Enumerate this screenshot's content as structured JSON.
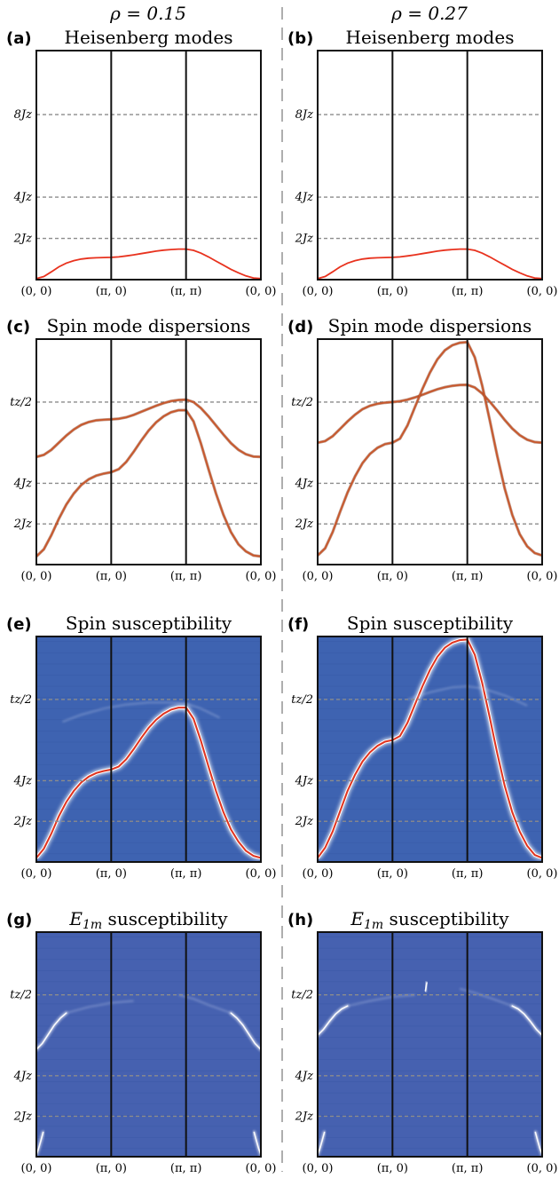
{
  "columns": [
    "ρ = 0.15",
    "ρ = 0.27"
  ],
  "colors": {
    "frame": "#111111",
    "grid": "#8c8c8c",
    "heisenberg_line": "#e8321e",
    "spin_mode_line": "#c9582c",
    "heatmap_bg": "#3e63b1",
    "heatmap_bg_e1m": "#4661b0",
    "ridge_core": "#e0321e",
    "ridge_halo": "#ffffff",
    "separator": "#9a9a9a"
  },
  "chart_data": [
    {
      "type": "line",
      "panel_label": "(a)",
      "column": "ρ = 0.15",
      "title": "Heisenberg modes",
      "x_ticks": [
        "(0, 0)",
        "(π, 0)",
        "(π, π)",
        "(0, 0)"
      ],
      "y_ticks": [
        {
          "label": "2Jz",
          "value": 2
        },
        {
          "label": "4Jz",
          "value": 4
        },
        {
          "label": "8Jz",
          "value": 8
        }
      ],
      "ylim": [
        0,
        11.1
      ],
      "series": [
        {
          "x": [
            0,
            0.1,
            0.2,
            0.3,
            0.4,
            0.5,
            0.6,
            0.7,
            0.8,
            0.9,
            1,
            1.1,
            1.2,
            1.3,
            1.4,
            1.5,
            1.6,
            1.7,
            1.8,
            1.9,
            2,
            2.1,
            2.2,
            2.3,
            2.4,
            2.5,
            2.6,
            2.7,
            2.8,
            2.9,
            3
          ],
          "y": [
            0.05,
            0.15,
            0.38,
            0.62,
            0.8,
            0.92,
            1.0,
            1.04,
            1.06,
            1.07,
            1.08,
            1.1,
            1.15,
            1.2,
            1.26,
            1.32,
            1.38,
            1.43,
            1.46,
            1.48,
            1.48,
            1.42,
            1.28,
            1.1,
            0.9,
            0.7,
            0.5,
            0.33,
            0.18,
            0.08,
            0.05
          ]
        }
      ]
    },
    {
      "type": "line",
      "panel_label": "(b)",
      "column": "ρ = 0.27",
      "title": "Heisenberg modes",
      "x_ticks": [
        "(0, 0)",
        "(π, 0)",
        "(π, π)",
        "(0, 0)"
      ],
      "y_ticks": [
        {
          "label": "2Jz",
          "value": 2
        },
        {
          "label": "4Jz",
          "value": 4
        },
        {
          "label": "8Jz",
          "value": 8
        }
      ],
      "ylim": [
        0,
        11.1
      ],
      "series": [
        {
          "x": [
            0,
            0.1,
            0.2,
            0.3,
            0.4,
            0.5,
            0.6,
            0.7,
            0.8,
            0.9,
            1,
            1.1,
            1.2,
            1.3,
            1.4,
            1.5,
            1.6,
            1.7,
            1.8,
            1.9,
            2,
            2.1,
            2.2,
            2.3,
            2.4,
            2.5,
            2.6,
            2.7,
            2.8,
            2.9,
            3
          ],
          "y": [
            0.05,
            0.15,
            0.38,
            0.62,
            0.8,
            0.92,
            1.0,
            1.04,
            1.06,
            1.07,
            1.08,
            1.1,
            1.15,
            1.2,
            1.26,
            1.32,
            1.38,
            1.43,
            1.46,
            1.48,
            1.48,
            1.42,
            1.28,
            1.1,
            0.9,
            0.7,
            0.5,
            0.33,
            0.18,
            0.08,
            0.05
          ]
        }
      ]
    },
    {
      "type": "line",
      "panel_label": "(c)",
      "column": "ρ = 0.15",
      "title": "Spin mode dispersions",
      "x_ticks": [
        "(0, 0)",
        "(π, 0)",
        "(π, π)",
        "(0, 0)"
      ],
      "y_ticks": [
        {
          "label": "2Jz",
          "value": 2
        },
        {
          "label": "4Jz",
          "value": 4
        },
        {
          "label": "tz/2",
          "value": 8
        }
      ],
      "ylim": [
        0,
        11.1
      ],
      "series": [
        {
          "x": [
            0,
            0.1,
            0.2,
            0.3,
            0.4,
            0.5,
            0.6,
            0.7,
            0.8,
            0.9,
            1,
            1.1,
            1.2,
            1.3,
            1.4,
            1.5,
            1.6,
            1.7,
            1.8,
            1.9,
            2,
            2.1,
            2.2,
            2.3,
            2.4,
            2.5,
            2.6,
            2.7,
            2.8,
            2.9,
            3
          ],
          "y": [
            5.3,
            5.4,
            5.65,
            6.0,
            6.35,
            6.65,
            6.88,
            7.02,
            7.1,
            7.13,
            7.15,
            7.18,
            7.25,
            7.37,
            7.52,
            7.67,
            7.82,
            7.95,
            8.05,
            8.1,
            8.12,
            8.0,
            7.7,
            7.3,
            6.85,
            6.4,
            5.98,
            5.65,
            5.43,
            5.32,
            5.3
          ]
        },
        {
          "x": [
            0,
            0.1,
            0.2,
            0.3,
            0.4,
            0.5,
            0.6,
            0.7,
            0.8,
            0.9,
            1,
            1.1,
            1.2,
            1.3,
            1.4,
            1.5,
            1.6,
            1.7,
            1.8,
            1.9,
            2,
            2.1,
            2.2,
            2.3,
            2.4,
            2.5,
            2.6,
            2.7,
            2.8,
            2.9,
            3
          ],
          "y": [
            0.4,
            0.75,
            1.45,
            2.25,
            2.95,
            3.5,
            3.92,
            4.2,
            4.38,
            4.48,
            4.55,
            4.7,
            5.05,
            5.55,
            6.1,
            6.6,
            7.0,
            7.3,
            7.5,
            7.6,
            7.6,
            7.05,
            5.95,
            4.7,
            3.5,
            2.45,
            1.6,
            1.0,
            0.65,
            0.45,
            0.4
          ]
        }
      ]
    },
    {
      "type": "line",
      "panel_label": "(d)",
      "column": "ρ = 0.27",
      "title": "Spin mode dispersions",
      "x_ticks": [
        "(0, 0)",
        "(π, 0)",
        "(π, π)",
        "(0, 0)"
      ],
      "y_ticks": [
        {
          "label": "2Jz",
          "value": 2
        },
        {
          "label": "4Jz",
          "value": 4
        },
        {
          "label": "tz/2",
          "value": 8
        }
      ],
      "ylim": [
        0,
        11.1
      ],
      "series": [
        {
          "x": [
            0,
            0.1,
            0.2,
            0.3,
            0.4,
            0.5,
            0.6,
            0.7,
            0.8,
            0.9,
            1,
            1.1,
            1.2,
            1.3,
            1.4,
            1.5,
            1.6,
            1.7,
            1.8,
            1.9,
            2,
            2.1,
            2.2,
            2.3,
            2.4,
            2.5,
            2.6,
            2.7,
            2.8,
            2.9,
            3
          ],
          "y": [
            6.0,
            6.08,
            6.32,
            6.68,
            7.05,
            7.38,
            7.65,
            7.82,
            7.92,
            7.97,
            8.0,
            8.04,
            8.12,
            8.23,
            8.36,
            8.5,
            8.63,
            8.73,
            8.8,
            8.84,
            8.85,
            8.72,
            8.42,
            8.02,
            7.58,
            7.12,
            6.7,
            6.37,
            6.15,
            6.03,
            6.0
          ]
        },
        {
          "x": [
            0,
            0.1,
            0.2,
            0.3,
            0.4,
            0.5,
            0.6,
            0.7,
            0.8,
            0.9,
            1,
            1.1,
            1.2,
            1.3,
            1.4,
            1.5,
            1.6,
            1.7,
            1.8,
            1.9,
            2,
            2.1,
            2.2,
            2.3,
            2.4,
            2.5,
            2.6,
            2.7,
            2.8,
            2.9,
            3
          ],
          "y": [
            0.45,
            0.8,
            1.6,
            2.6,
            3.55,
            4.35,
            5.0,
            5.45,
            5.75,
            5.93,
            6.0,
            6.2,
            6.85,
            7.75,
            8.65,
            9.45,
            10.1,
            10.55,
            10.8,
            10.92,
            10.95,
            10.2,
            8.8,
            7.1,
            5.35,
            3.75,
            2.45,
            1.5,
            0.9,
            0.57,
            0.45
          ]
        }
      ]
    },
    {
      "type": "heatmap",
      "panel_label": "(e)",
      "column": "ρ = 0.15",
      "title": "Spin susceptibility",
      "x_ticks": [
        "(0, 0)",
        "(π, 0)",
        "(π, π)",
        "(0, 0)"
      ],
      "y_ticks": [
        {
          "label": "2Jz",
          "value": 2
        },
        {
          "label": "4Jz",
          "value": 4
        },
        {
          "label": "tz/2",
          "value": 8
        }
      ],
      "ylim": [
        0,
        11.1
      ],
      "ridges": [
        {
          "kind": "main",
          "x": [
            0,
            0.1,
            0.2,
            0.3,
            0.4,
            0.5,
            0.6,
            0.7,
            0.8,
            0.9,
            1,
            1.1,
            1.2,
            1.3,
            1.4,
            1.5,
            1.6,
            1.7,
            1.8,
            1.9,
            2,
            2.1,
            2.2,
            2.3,
            2.4,
            2.5,
            2.6,
            2.7,
            2.8,
            2.9,
            3
          ],
          "y": [
            0.2,
            0.65,
            1.4,
            2.25,
            2.95,
            3.5,
            3.92,
            4.2,
            4.38,
            4.48,
            4.55,
            4.7,
            5.05,
            5.55,
            6.1,
            6.6,
            7.0,
            7.3,
            7.5,
            7.6,
            7.6,
            7.05,
            5.95,
            4.7,
            3.5,
            2.45,
            1.6,
            1.0,
            0.55,
            0.3,
            0.2
          ]
        },
        {
          "kind": "faint",
          "x": [
            0.35,
            0.6,
            0.9,
            1.2,
            1.5,
            1.8,
            2.0,
            2.2,
            2.45
          ],
          "y": [
            6.9,
            7.25,
            7.55,
            7.75,
            7.85,
            7.85,
            7.8,
            7.55,
            7.1
          ]
        }
      ]
    },
    {
      "type": "heatmap",
      "panel_label": "(f)",
      "column": "ρ = 0.27",
      "title": "Spin susceptibility",
      "x_ticks": [
        "(0, 0)",
        "(π, 0)",
        "(π, π)",
        "(0, 0)"
      ],
      "y_ticks": [
        {
          "label": "2Jz",
          "value": 2
        },
        {
          "label": "4Jz",
          "value": 4
        },
        {
          "label": "tz/2",
          "value": 8
        }
      ],
      "ylim": [
        0,
        11.1
      ],
      "ridges": [
        {
          "kind": "main",
          "x": [
            0,
            0.1,
            0.2,
            0.3,
            0.4,
            0.5,
            0.6,
            0.7,
            0.8,
            0.9,
            1,
            1.1,
            1.2,
            1.3,
            1.4,
            1.5,
            1.6,
            1.7,
            1.8,
            1.9,
            2,
            2.1,
            2.2,
            2.3,
            2.4,
            2.5,
            2.6,
            2.7,
            2.8,
            2.9,
            3
          ],
          "y": [
            0.2,
            0.7,
            1.5,
            2.5,
            3.5,
            4.3,
            4.95,
            5.4,
            5.72,
            5.92,
            6.0,
            6.2,
            6.85,
            7.75,
            8.65,
            9.45,
            10.1,
            10.55,
            10.8,
            10.92,
            10.95,
            10.2,
            8.8,
            7.1,
            5.35,
            3.75,
            2.45,
            1.5,
            0.8,
            0.35,
            0.2
          ]
        },
        {
          "kind": "faint",
          "x": [
            1.2,
            1.5,
            1.8,
            2.0,
            2.2,
            2.5,
            2.8
          ],
          "y": [
            8.0,
            8.35,
            8.6,
            8.65,
            8.55,
            8.2,
            7.7
          ]
        }
      ]
    },
    {
      "type": "heatmap",
      "panel_label": "(g)",
      "column": "ρ = 0.15",
      "title": "E1m susceptibility",
      "title_main": "E",
      "title_sub": "1m",
      "title_rest": " susceptibility",
      "x_ticks": [
        "(0, 0)",
        "(π, 0)",
        "(π, π)",
        "(0, 0)"
      ],
      "y_ticks": [
        {
          "label": "2Jz",
          "value": 2
        },
        {
          "label": "4Jz",
          "value": 4
        },
        {
          "label": "tz/2",
          "value": 8
        }
      ],
      "ylim": [
        0,
        11.1
      ],
      "ridges": [
        {
          "kind": "bright",
          "x": [
            0,
            0.08,
            0.16,
            0.24,
            0.32,
            0.4
          ],
          "y": [
            5.3,
            5.6,
            6.05,
            6.5,
            6.85,
            7.1
          ]
        },
        {
          "kind": "bright",
          "x": [
            2.6,
            2.68,
            2.76,
            2.84,
            2.92,
            3.0
          ],
          "y": [
            7.1,
            6.85,
            6.5,
            6.05,
            5.6,
            5.3
          ]
        },
        {
          "kind": "faint",
          "x": [
            0.4,
            0.7,
            1.0,
            1.3
          ],
          "y": [
            7.1,
            7.4,
            7.6,
            7.7
          ]
        },
        {
          "kind": "faint",
          "x": [
            1.9,
            2.1,
            2.3,
            2.6
          ],
          "y": [
            8.0,
            7.8,
            7.5,
            7.1
          ]
        },
        {
          "kind": "bright",
          "x": [
            0,
            0.03,
            0.06,
            0.09
          ],
          "y": [
            0.1,
            0.4,
            0.8,
            1.2
          ]
        },
        {
          "kind": "bright",
          "x": [
            2.91,
            2.94,
            2.97,
            3.0
          ],
          "y": [
            1.2,
            0.8,
            0.4,
            0.1
          ]
        }
      ]
    },
    {
      "type": "heatmap",
      "panel_label": "(h)",
      "column": "ρ = 0.27",
      "title": "E1m susceptibility",
      "title_main": "E",
      "title_sub": "1m",
      "title_rest": " susceptibility",
      "x_ticks": [
        "(0, 0)",
        "(π, 0)",
        "(π, π)",
        "(0, 0)"
      ],
      "y_ticks": [
        {
          "label": "2Jz",
          "value": 2
        },
        {
          "label": "4Jz",
          "value": 4
        },
        {
          "label": "tz/2",
          "value": 8
        }
      ],
      "ylim": [
        0,
        11.1
      ],
      "ridges": [
        {
          "kind": "bright",
          "x": [
            0,
            0.08,
            0.16,
            0.24,
            0.32,
            0.4
          ],
          "y": [
            6.0,
            6.3,
            6.7,
            7.05,
            7.3,
            7.45
          ]
        },
        {
          "kind": "bright",
          "x": [
            2.6,
            2.68,
            2.76,
            2.84,
            2.92,
            3.0
          ],
          "y": [
            7.45,
            7.3,
            7.05,
            6.7,
            6.3,
            6.0
          ]
        },
        {
          "kind": "faint",
          "x": [
            0.4,
            0.7,
            1.0,
            1.3
          ],
          "y": [
            7.45,
            7.7,
            7.9,
            8.0
          ]
        },
        {
          "kind": "faint",
          "x": [
            1.9,
            2.1,
            2.3,
            2.6
          ],
          "y": [
            8.3,
            8.1,
            7.85,
            7.45
          ]
        },
        {
          "kind": "bright",
          "x": [
            0,
            0.03,
            0.06,
            0.09
          ],
          "y": [
            0.1,
            0.4,
            0.8,
            1.2
          ]
        },
        {
          "kind": "bright",
          "x": [
            2.91,
            2.94,
            2.97,
            3.0
          ],
          "y": [
            1.2,
            0.8,
            0.4,
            0.1
          ]
        },
        {
          "kind": "bright",
          "x": [
            1.44,
            1.45,
            1.46
          ],
          "y": [
            8.2,
            8.4,
            8.6
          ]
        }
      ]
    }
  ]
}
